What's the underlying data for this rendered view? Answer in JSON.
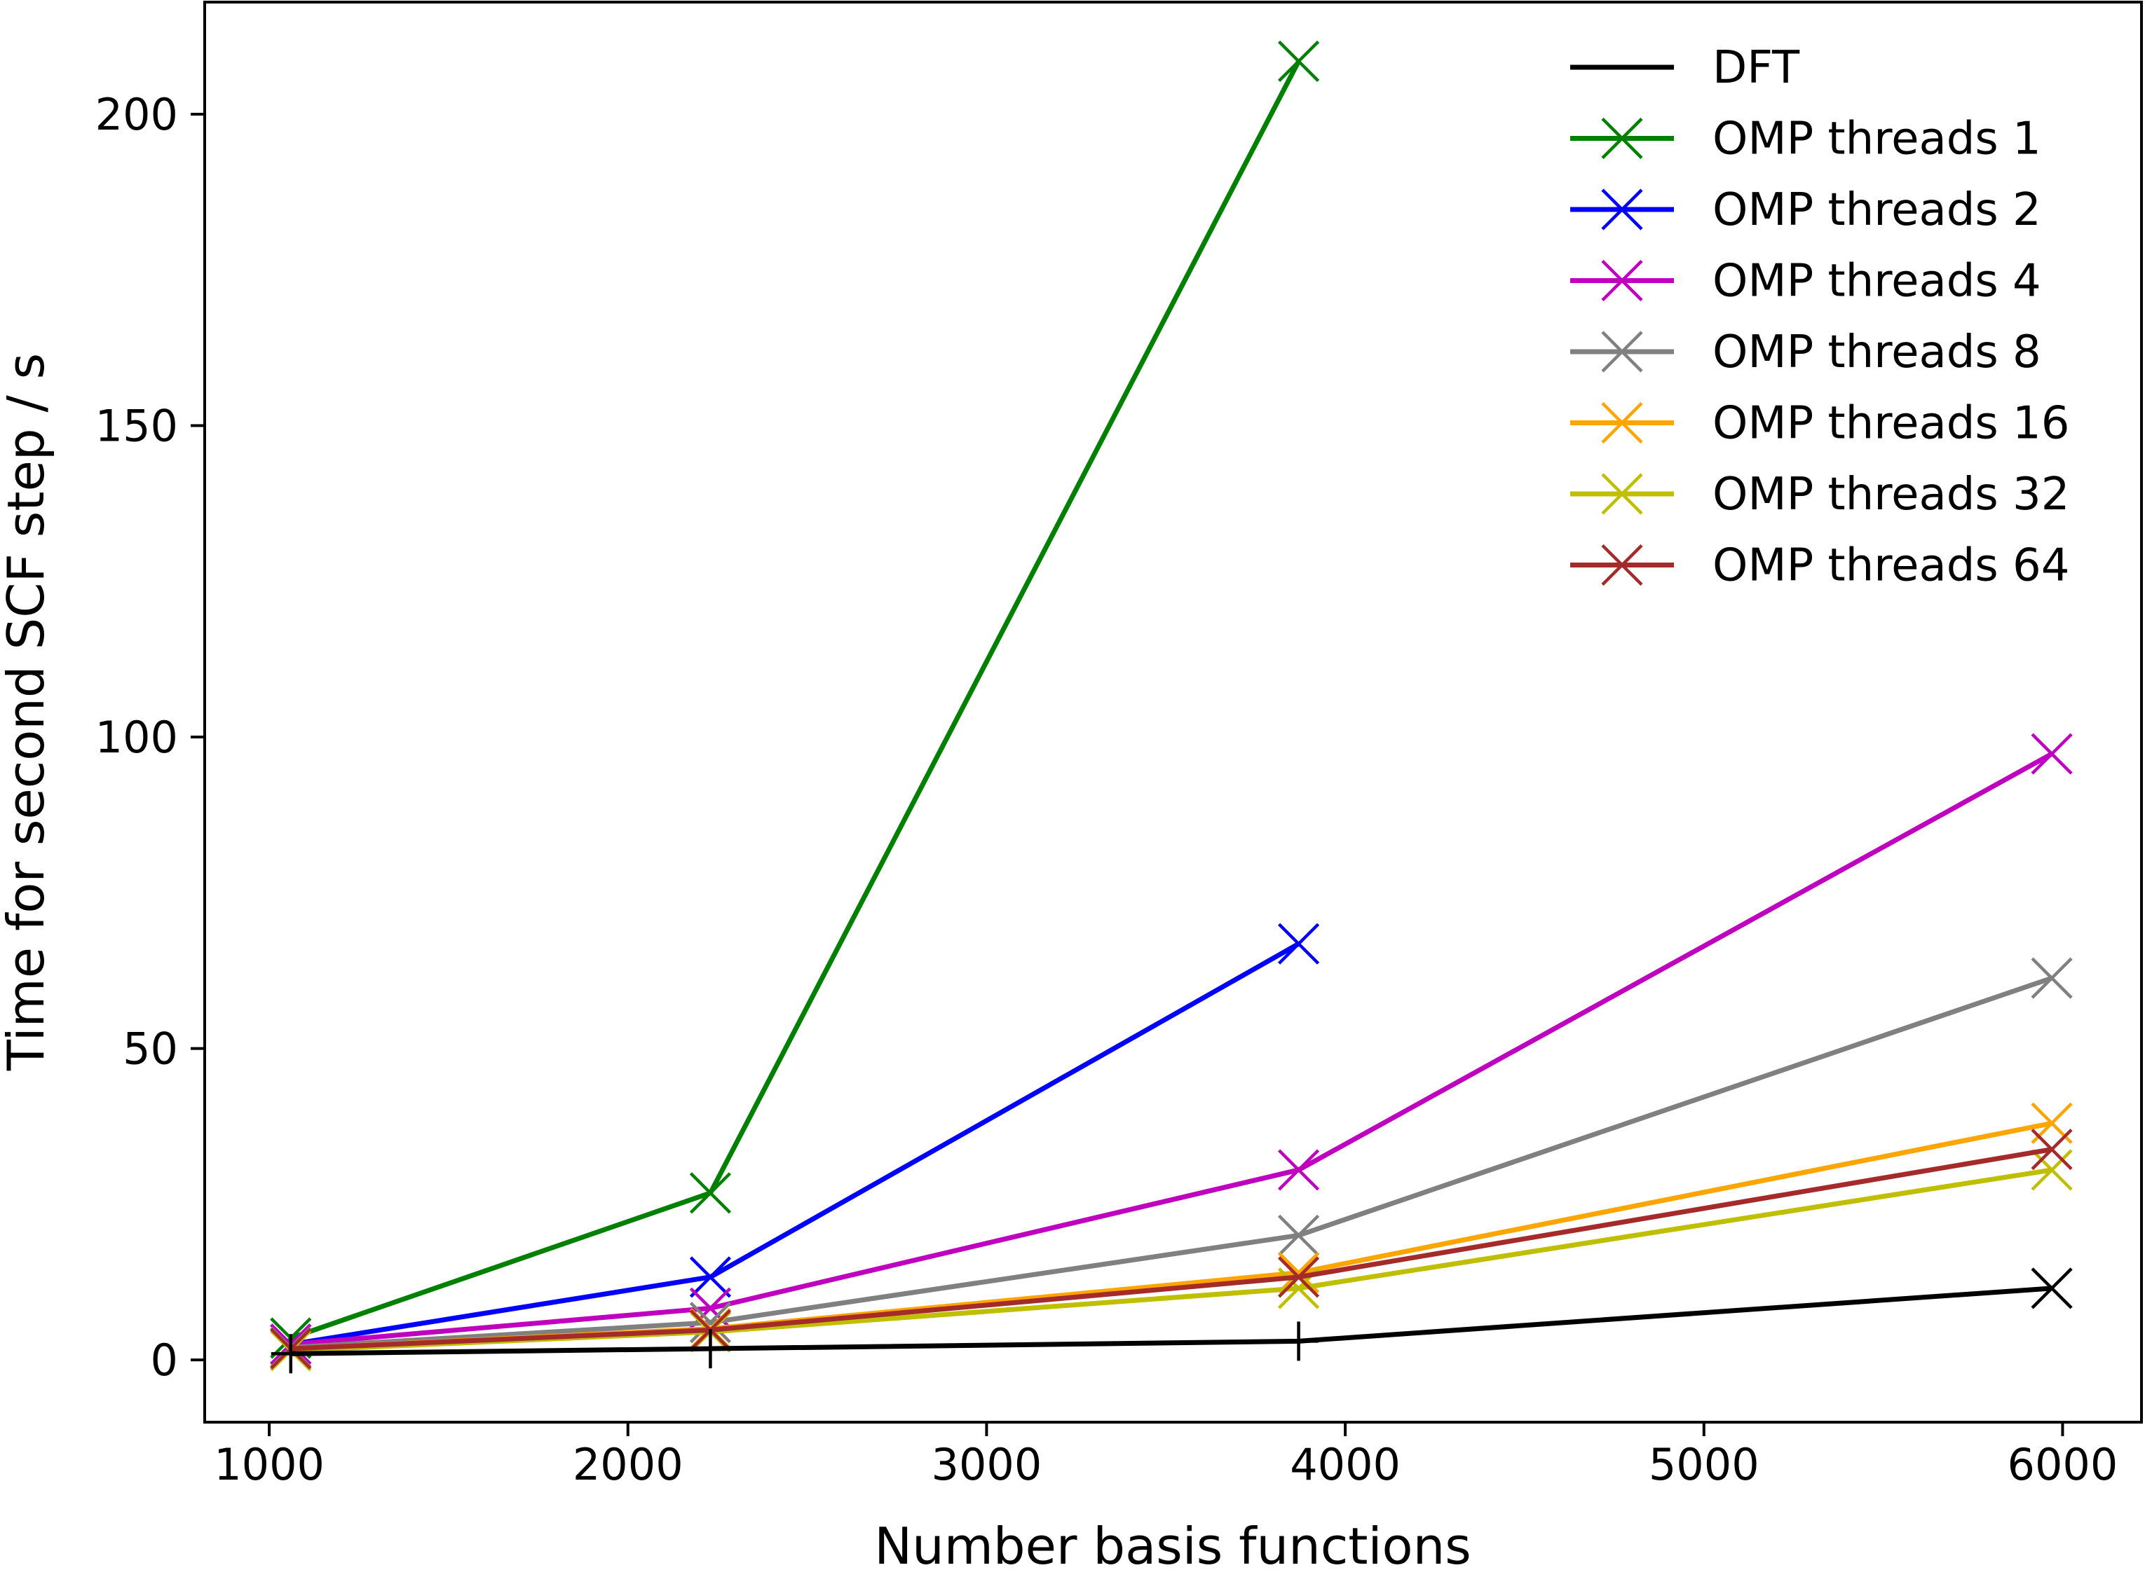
{
  "chart_data": {
    "type": "line",
    "xlabel": "Number basis functions",
    "ylabel": "Time for second SCF step / s",
    "xlim": [
      820,
      6220
    ],
    "ylim": [
      -10,
      218
    ],
    "xticks": [
      1000,
      2000,
      3000,
      4000,
      5000,
      6000
    ],
    "yticks": [
      0,
      50,
      100,
      150,
      200
    ],
    "grid": false,
    "legend_position": "top-right",
    "series": [
      {
        "name": "DFT",
        "color": "#000000",
        "marker": "+",
        "x": [
          1060,
          2230,
          3870,
          5970
        ],
        "y": [
          1,
          1.8,
          3,
          11.5
        ],
        "end_marker": "x"
      },
      {
        "name": "OMP threads 1",
        "color": "#008000",
        "marker": "x",
        "x": [
          1060,
          2230,
          3870
        ],
        "y": [
          3.5,
          26.8,
          208.5
        ]
      },
      {
        "name": "OMP threads 2",
        "color": "#0000ff",
        "marker": "x",
        "x": [
          1060,
          2230,
          3870
        ],
        "y": [
          2.5,
          13.3,
          66.8
        ]
      },
      {
        "name": "OMP threads 4",
        "color": "#bf00bf",
        "marker": "x",
        "x": [
          1060,
          2230,
          3870,
          5970
        ],
        "y": [
          2.5,
          8.3,
          30.5,
          97.3
        ]
      },
      {
        "name": "OMP threads 8",
        "color": "#808080",
        "marker": "x",
        "x": [
          1060,
          2230,
          3870,
          5970
        ],
        "y": [
          2.0,
          6.0,
          20.0,
          61.3
        ]
      },
      {
        "name": "OMP threads 16",
        "color": "#ffa500",
        "marker": "x",
        "x": [
          1060,
          2230,
          3870,
          5970
        ],
        "y": [
          1.8,
          5.0,
          14.0,
          38.0
        ]
      },
      {
        "name": "OMP threads 32",
        "color": "#bfbf00",
        "marker": "x",
        "x": [
          1060,
          2230,
          3870,
          5970
        ],
        "y": [
          1.5,
          4.5,
          11.5,
          30.5
        ]
      },
      {
        "name": "OMP threads 64",
        "color": "#a52a2a",
        "marker": "x",
        "x": [
          1060,
          2230,
          3870,
          5970
        ],
        "y": [
          1.8,
          4.8,
          13.3,
          33.8
        ]
      }
    ]
  }
}
